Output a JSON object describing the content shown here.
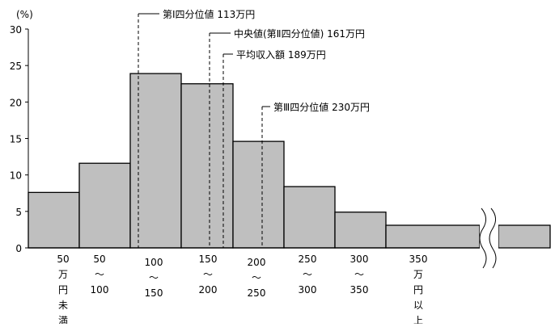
{
  "chart_data": {
    "type": "bar",
    "ylabel": "(%)",
    "ylim": [
      0,
      30
    ],
    "yticks": [
      0,
      5,
      10,
      15,
      20,
      25,
      30
    ],
    "grid": false,
    "categories": [
      [
        "50",
        "万",
        "円",
        "未",
        "満"
      ],
      [
        "50",
        "〜",
        "100"
      ],
      [
        "100",
        "〜",
        "150"
      ],
      [
        "150",
        "〜",
        "200"
      ],
      [
        "200",
        "〜",
        "250"
      ],
      [
        "250",
        "〜",
        "300"
      ],
      [
        "300",
        "〜",
        "350"
      ],
      [
        "350",
        "万",
        "円",
        "以",
        "上"
      ]
    ],
    "values": [
      7.6,
      11.6,
      23.9,
      22.5,
      14.6,
      8.4,
      4.9,
      3.1
    ],
    "bar_color": "#bfbfbf",
    "axis_break": "after last category (wavy double line)",
    "annotations": [
      {
        "label": "第Ⅰ四分位値 113万円",
        "value": 113
      },
      {
        "label": "中央値(第Ⅱ四分位値) 161万円",
        "value": 161
      },
      {
        "label": "平均収入額 189万円",
        "value": 189
      },
      {
        "label": "第Ⅲ四分位値 230万円",
        "value": 230
      }
    ]
  }
}
